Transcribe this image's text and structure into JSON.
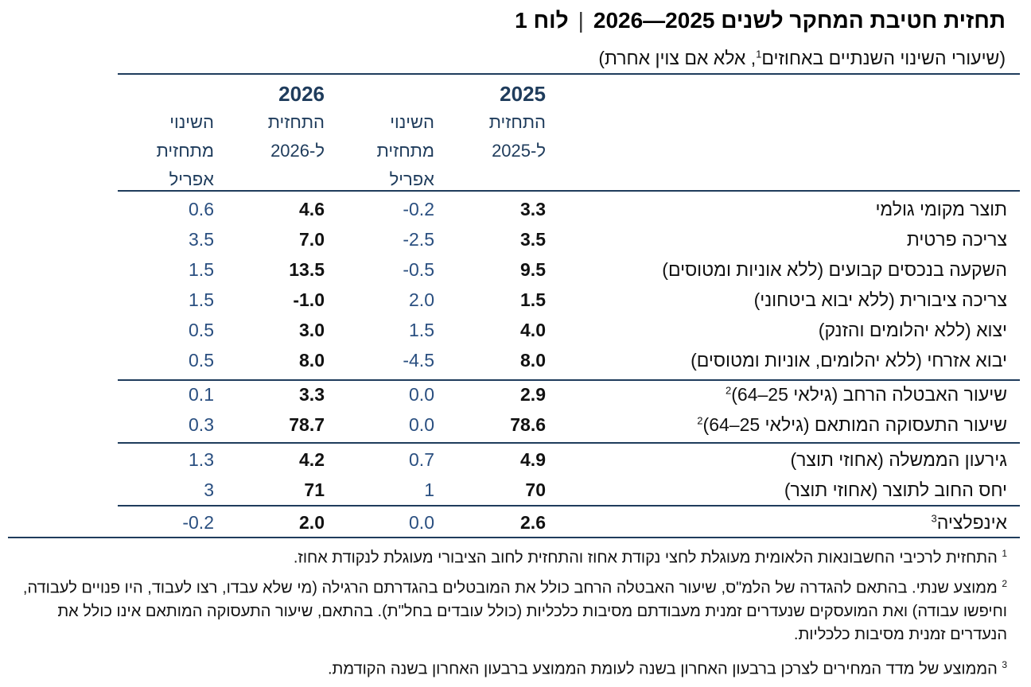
{
  "title": {
    "label": "לוח 1",
    "separator": "|",
    "text": "תחזית חטיבת המחקר לשנים 2025—2026"
  },
  "subtitle": {
    "text": "(שיעורי השינוי השנתיים באחוזים",
    "sup": "1",
    "rest": ", אלא אם צוין אחרת)"
  },
  "headers": {
    "y2025": {
      "year": "2025",
      "line1": "התחזית",
      "line2": "ל-2025"
    },
    "ch2025": {
      "line1": "השינוי",
      "line2": "מתחזית",
      "line3": "אפריל"
    },
    "y2026": {
      "year": "2026",
      "line1": "התחזית",
      "line2": "ל-2026"
    },
    "ch2026": {
      "line1": "השינוי",
      "line2": "מתחזית",
      "line3": "אפריל"
    }
  },
  "rows": [
    {
      "label": "תוצר מקומי גולמי",
      "sup": "",
      "f2025": "3.3",
      "ch2025": "-0.2",
      "f2026": "4.6",
      "ch2026": "0.6"
    },
    {
      "label": "צריכה פרטית",
      "sup": "",
      "f2025": "3.5",
      "ch2025": "-2.5",
      "f2026": "7.0",
      "ch2026": "3.5"
    },
    {
      "label": "השקעה בנכסים קבועים (ללא אוניות ומטוסים)",
      "sup": "",
      "f2025": "9.5",
      "ch2025": "-0.5",
      "f2026": "13.5",
      "ch2026": "1.5"
    },
    {
      "label": "צריכה ציבורית (ללא יבוא ביטחוני)",
      "sup": "",
      "f2025": "1.5",
      "ch2025": "2.0",
      "f2026": "-1.0",
      "ch2026": "1.5"
    },
    {
      "label": "יצוא (ללא יהלומים והזנק)",
      "sup": "",
      "f2025": "4.0",
      "ch2025": "1.5",
      "f2026": "3.0",
      "ch2026": "0.5"
    },
    {
      "label": "יבוא אזרחי (ללא יהלומים, אוניות ומטוסים)",
      "sup": "",
      "f2025": "8.0",
      "ch2025": "-4.5",
      "f2026": "8.0",
      "ch2026": "0.5"
    },
    {
      "label": "שיעור האבטלה הרחב (גילאי 25–64)",
      "sup": "2",
      "f2025": "2.9",
      "ch2025": "0.0",
      "f2026": "3.3",
      "ch2026": "0.1"
    },
    {
      "label": "שיעור התעסוקה המותאם (גילאי 25–64)",
      "sup": "2",
      "f2025": "78.6",
      "ch2025": "0.0",
      "f2026": "78.7",
      "ch2026": "0.3"
    },
    {
      "label": "גירעון הממשלה (אחוזי תוצר)",
      "sup": "",
      "f2025": "4.9",
      "ch2025": "0.7",
      "f2026": "4.2",
      "ch2026": "1.3"
    },
    {
      "label": "יחס החוב לתוצר (אחוזי תוצר)",
      "sup": "",
      "f2025": "70",
      "ch2025": "1",
      "f2026": "71",
      "ch2026": "3"
    },
    {
      "label": "אינפלציה",
      "sup": "3",
      "f2025": "2.6",
      "ch2025": "0.0",
      "f2026": "2.0",
      "ch2026": "-0.2"
    }
  ],
  "footnotes": [
    {
      "num": "1",
      "text": "התחזית לרכיבי החשבונאות הלאומית מעוגלת לחצי נקודת אחוז והתחזית לחוב הציבורי מעוגלת לנקודת אחוז."
    },
    {
      "num": "2",
      "text": "ממוצע שנתי. בהתאם להגדרה של הלמ\"ס, שיעור האבטלה הרחב כולל את המובטלים בהגדרתם הרגילה (מי שלא עבדו, רצו לעבוד, היו פנויים לעבודה, וחיפשו עבודה) ואת המועסקים שנעדרים זמנית מעבודתם מסיבות כלכליות (כולל עובדים בחל\"ת). בהתאם, שיעור התעסוקה המותאם אינו כולל את הנעדרים זמנית מסיבות כלכליות."
    },
    {
      "num": "3",
      "text": "הממוצע של מדד המחירים לצרכן ברבעון האחרון בשנה לעומת הממוצע ברבעון האחרון בשנה הקודמת."
    }
  ],
  "colors": {
    "accent": "#1f3c5c",
    "blue_values": "#2a4f80"
  }
}
